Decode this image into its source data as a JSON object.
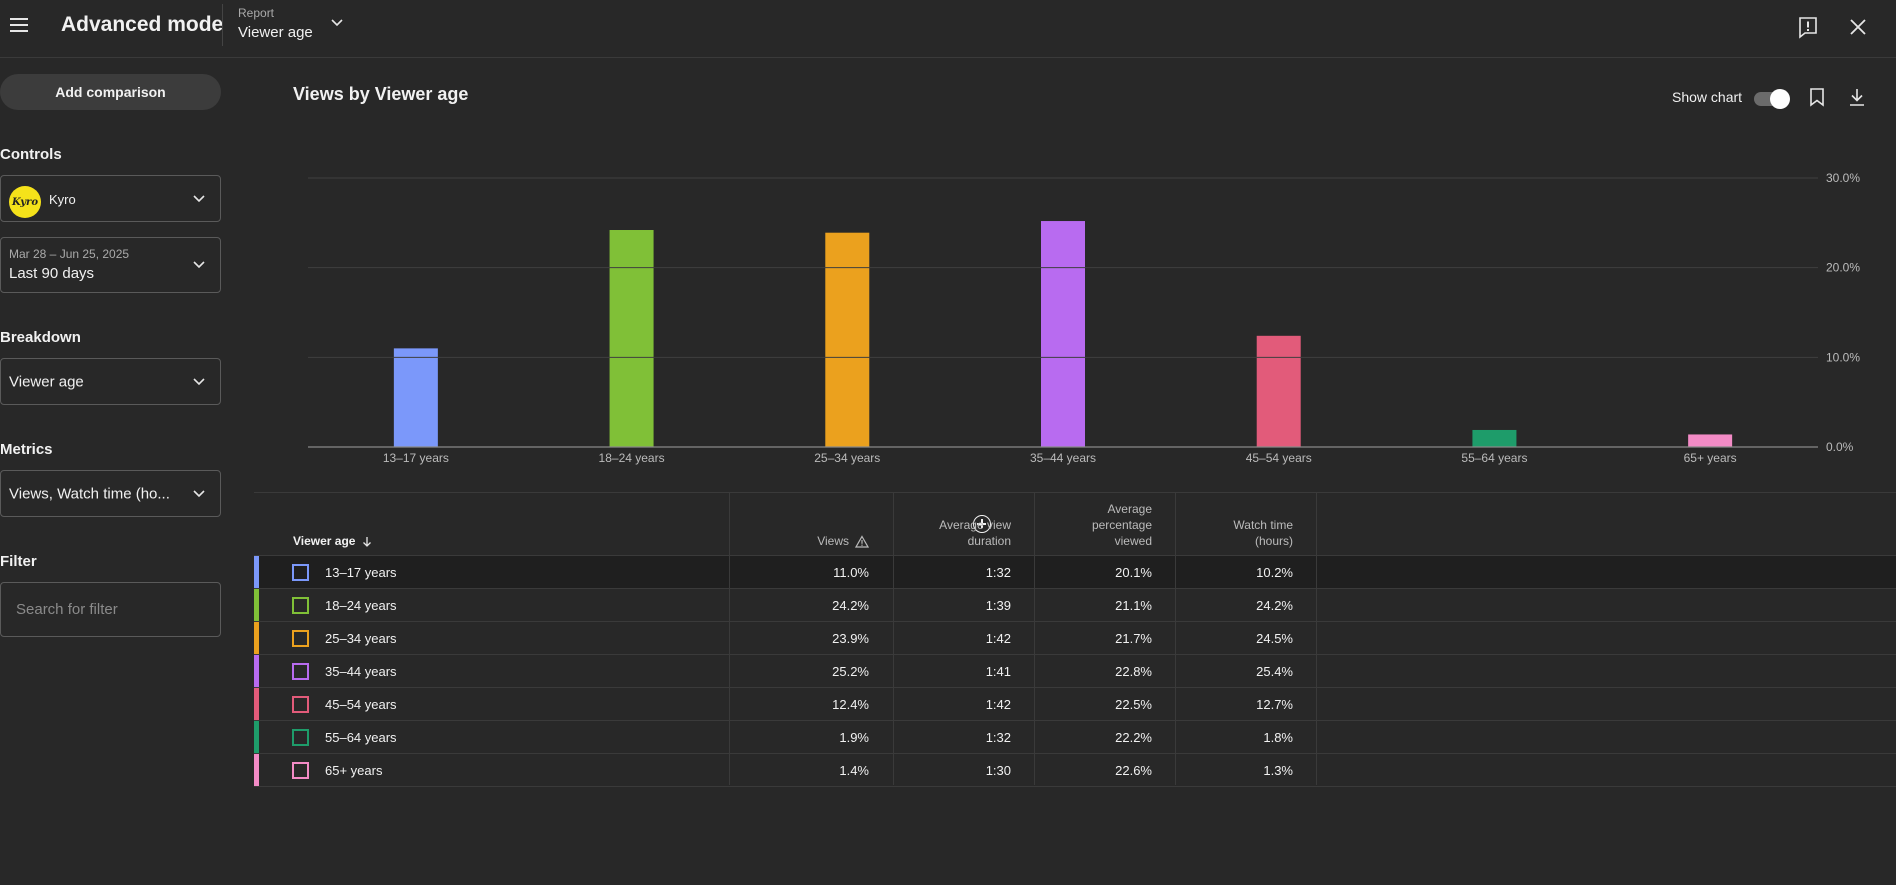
{
  "header": {
    "title": "Advanced mode",
    "report_kicker": "Report",
    "report_value": "Viewer age"
  },
  "sidebar": {
    "add_comparison": "Add comparison",
    "controls_label": "Controls",
    "channel_name": "Kyro",
    "channel_logo_text": "Kyro",
    "date_range": "Mar 28 – Jun 25, 2025",
    "date_preset": "Last 90 days",
    "breakdown_label": "Breakdown",
    "breakdown_value": "Viewer age",
    "metrics_label": "Metrics",
    "metrics_value": "Views, Watch time (ho...",
    "filter_label": "Filter",
    "filter_placeholder": "Search for filter"
  },
  "chart": {
    "title": "Views by Viewer age",
    "show_chart_label": "Show chart"
  },
  "chart_data": {
    "type": "bar",
    "categories": [
      "13–17 years",
      "18–24 years",
      "25–34 years",
      "35–44 years",
      "45–54 years",
      "55–64 years",
      "65+ years"
    ],
    "values": [
      11.0,
      24.2,
      23.9,
      25.2,
      12.4,
      1.9,
      1.4
    ],
    "colors": [
      "#7b98fa",
      "#80c037",
      "#eba11e",
      "#b86bf0",
      "#e25b7a",
      "#1e9c6a",
      "#f38bc6"
    ],
    "ylim": [
      0,
      30
    ],
    "yticks": [
      "0.0%",
      "10.0%",
      "20.0%",
      "30.0%"
    ],
    "title": "Views by Viewer age",
    "grid": true
  },
  "table": {
    "columns": [
      {
        "label": "Viewer age"
      },
      {
        "label": "Views"
      },
      {
        "label": "Average view duration"
      },
      {
        "label": "Average percentage viewed"
      },
      {
        "label": "Watch time (hours)"
      }
    ],
    "rows": [
      {
        "label": "13–17 years",
        "color": "#7b98fa",
        "views": "11.0%",
        "avd": "1:32",
        "apv": "20.1%",
        "watch": "10.2%"
      },
      {
        "label": "18–24 years",
        "color": "#80c037",
        "views": "24.2%",
        "avd": "1:39",
        "apv": "21.1%",
        "watch": "24.2%"
      },
      {
        "label": "25–34 years",
        "color": "#eba11e",
        "views": "23.9%",
        "avd": "1:42",
        "apv": "21.7%",
        "watch": "24.5%"
      },
      {
        "label": "35–44 years",
        "color": "#b86bf0",
        "views": "25.2%",
        "avd": "1:41",
        "apv": "22.8%",
        "watch": "25.4%"
      },
      {
        "label": "45–54 years",
        "color": "#e25b7a",
        "views": "12.4%",
        "avd": "1:42",
        "apv": "22.5%",
        "watch": "12.7%"
      },
      {
        "label": "55–64 years",
        "color": "#1e9c6a",
        "views": "1.9%",
        "avd": "1:32",
        "apv": "22.2%",
        "watch": "1.8%"
      },
      {
        "label": "65+ years",
        "color": "#f38bc6",
        "views": "1.4%",
        "avd": "1:30",
        "apv": "22.6%",
        "watch": "1.3%"
      }
    ]
  },
  "icons": {
    "menu": "hamburger-menu-icon",
    "report_dropdown": "chevron-down-icon",
    "feedback": "feedback-icon",
    "close": "close-icon",
    "bookmark": "bookmark-icon",
    "download": "download-icon",
    "sort": "arrow-down-icon",
    "warning": "warning-icon",
    "add_column": "add-circle-icon"
  }
}
